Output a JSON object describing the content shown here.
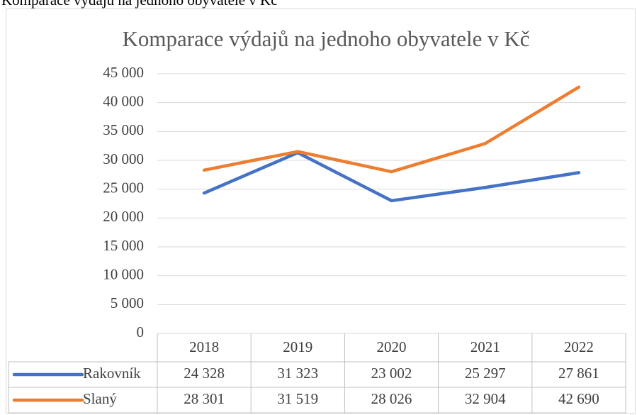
{
  "caption": "Komparace výdajů na jednoho obyvatele v Kč",
  "chart_data": {
    "type": "line",
    "title": "Komparace výdajů na jednoho obyvatele v Kč",
    "categories": [
      "2018",
      "2019",
      "2020",
      "2021",
      "2022"
    ],
    "series": [
      {
        "name": "Rakovník",
        "color": "#4472c4",
        "values": [
          24328,
          31323,
          23002,
          25297,
          27861
        ],
        "value_labels": [
          "24 328",
          "31 323",
          "23 002",
          "25 297",
          "27 861"
        ]
      },
      {
        "name": "Slaný",
        "color": "#ed7d31",
        "values": [
          28301,
          31519,
          28026,
          32904,
          42690
        ],
        "value_labels": [
          "28 301",
          "31 519",
          "28 026",
          "32 904",
          "42 690"
        ]
      }
    ],
    "ylim": [
      0,
      45000
    ],
    "yticks": [
      0,
      {
        "value": 5000,
        "label": "5 000"
      },
      {
        "value": 10000,
        "label": "10 000"
      },
      {
        "value": 15000,
        "label": "15 000"
      },
      {
        "value": 20000,
        "label": "20 000"
      },
      {
        "value": 25000,
        "label": "25 000"
      },
      {
        "value": 30000,
        "label": "30 000"
      },
      {
        "value": 35000,
        "label": "35 000"
      },
      {
        "value": 40000,
        "label": "40 000"
      },
      {
        "value": 45000,
        "label": "45 000"
      }
    ],
    "grid": true,
    "data_table": true
  }
}
